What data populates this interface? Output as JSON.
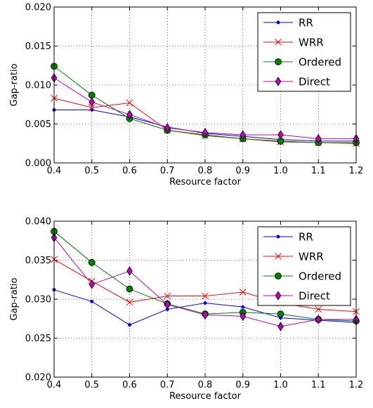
{
  "chart_data": [
    {
      "type": "line",
      "xlabel": "Resource factor",
      "ylabel": "Gap-ratio",
      "xlim": [
        0.4,
        1.2
      ],
      "ylim": [
        0.0,
        0.02
      ],
      "xticks": [
        "0.4",
        "0.5",
        "0.6",
        "0.7",
        "0.8",
        "0.9",
        "1.0",
        "1.1",
        "1.2"
      ],
      "yticks": [
        "0.000",
        "0.005",
        "0.010",
        "0.015",
        "0.020"
      ],
      "grid": true,
      "legend_position": "top-right",
      "x": [
        0.4,
        0.5,
        0.6,
        0.7,
        0.8,
        0.9,
        1.0,
        1.1,
        1.2
      ],
      "series": [
        {
          "name": "RR",
          "color": "#0000ff",
          "marker": "dot",
          "values": [
            0.0068,
            0.0068,
            0.0059,
            0.0046,
            0.0038,
            0.0034,
            0.003,
            0.0028,
            0.0028
          ]
        },
        {
          "name": "WRR",
          "color": "#ff0000",
          "marker": "x",
          "values": [
            0.0083,
            0.0071,
            0.0077,
            0.0042,
            0.0035,
            0.0031,
            0.0027,
            0.0026,
            0.0025
          ]
        },
        {
          "name": "Ordered",
          "color": "#008000",
          "marker": "circle",
          "values": [
            0.0124,
            0.0087,
            0.0057,
            0.0042,
            0.0036,
            0.0031,
            0.0028,
            0.0026,
            0.0026
          ]
        },
        {
          "name": "Direct",
          "color": "#bf00bf",
          "marker": "diamond",
          "values": [
            0.0109,
            0.0078,
            0.0062,
            0.0045,
            0.0039,
            0.0036,
            0.0036,
            0.0031,
            0.0031
          ]
        }
      ]
    },
    {
      "type": "line",
      "xlabel": "Resource factor",
      "ylabel": "Gap-ratio",
      "xlim": [
        0.4,
        1.2
      ],
      "ylim": [
        0.02,
        0.04
      ],
      "xticks": [
        "0.4",
        "0.5",
        "0.6",
        "0.7",
        "0.8",
        "0.9",
        "1.0",
        "1.1",
        "1.2"
      ],
      "yticks": [
        "0.020",
        "0.025",
        "0.030",
        "0.035",
        "0.040"
      ],
      "grid": true,
      "legend_position": "top-right",
      "x": [
        0.4,
        0.5,
        0.6,
        0.7,
        0.8,
        0.9,
        1.0,
        1.1,
        1.2
      ],
      "series": [
        {
          "name": "RR",
          "color": "#0000ff",
          "marker": "dot",
          "values": [
            0.0312,
            0.0297,
            0.0267,
            0.0287,
            0.0295,
            0.029,
            0.0276,
            0.0273,
            0.027
          ]
        },
        {
          "name": "WRR",
          "color": "#ff0000",
          "marker": "x",
          "values": [
            0.0351,
            0.0323,
            0.0296,
            0.0304,
            0.0304,
            0.0309,
            0.0295,
            0.0287,
            0.0284
          ]
        },
        {
          "name": "Ordered",
          "color": "#008000",
          "marker": "circle",
          "values": [
            0.0387,
            0.0347,
            0.0313,
            0.0294,
            0.0281,
            0.0283,
            0.0281,
            0.0274,
            0.0272
          ]
        },
        {
          "name": "Direct",
          "color": "#bf00bf",
          "marker": "diamond",
          "values": [
            0.0379,
            0.0319,
            0.0336,
            0.0293,
            0.028,
            0.0278,
            0.0265,
            0.0274,
            0.0274
          ]
        }
      ]
    }
  ]
}
